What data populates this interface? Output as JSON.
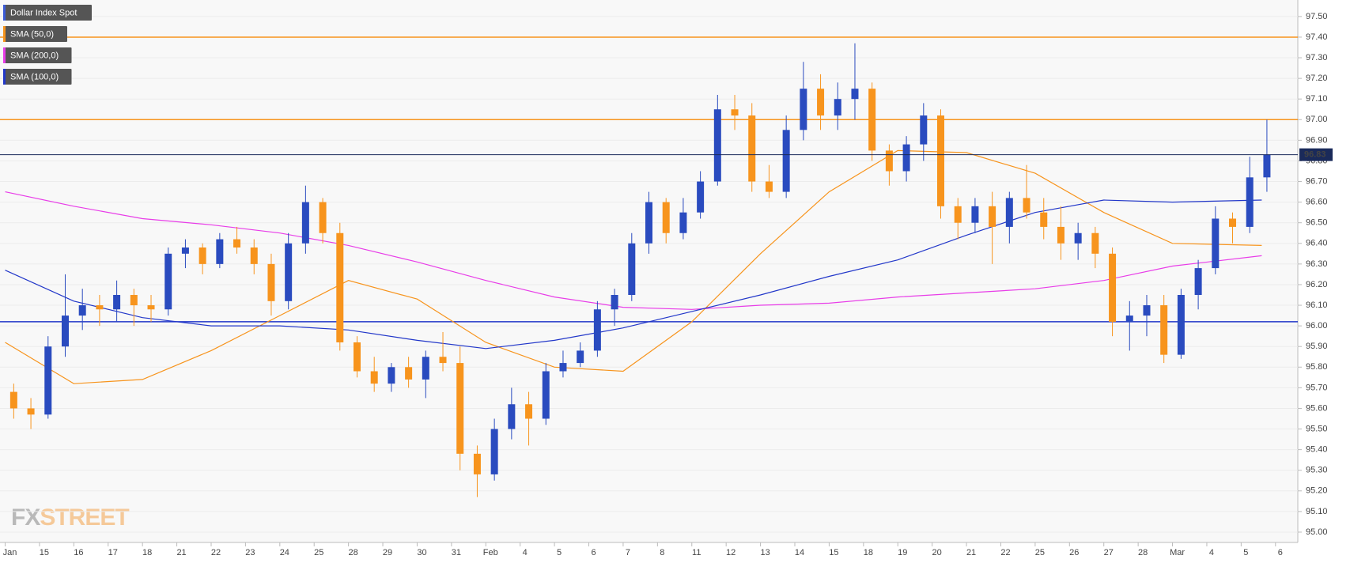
{
  "chart_data": {
    "type": "candlestick",
    "title": "Dollar Index Spot",
    "up_color": "#2a4bbf",
    "down_color": "#f7941d",
    "watermark": {
      "fx": "FX",
      "street": "STREET"
    },
    "xlim": [
      -0.15,
      37.65
    ],
    "ylim": [
      94.95,
      97.58
    ],
    "xticks": [
      {
        "value": 0,
        "label": "Jan"
      },
      {
        "value": 1,
        "label": "15"
      },
      {
        "value": 2,
        "label": "16"
      },
      {
        "value": 3,
        "label": "17"
      },
      {
        "value": 4,
        "label": "18"
      },
      {
        "value": 5,
        "label": "21"
      },
      {
        "value": 6,
        "label": "22"
      },
      {
        "value": 7,
        "label": "23"
      },
      {
        "value": 8,
        "label": "24"
      },
      {
        "value": 9,
        "label": "25"
      },
      {
        "value": 10,
        "label": "28"
      },
      {
        "value": 11,
        "label": "29"
      },
      {
        "value": 12,
        "label": "30"
      },
      {
        "value": 13,
        "label": "31"
      },
      {
        "value": 14,
        "label": "Feb"
      },
      {
        "value": 15,
        "label": "4"
      },
      {
        "value": 16,
        "label": "5"
      },
      {
        "value": 17,
        "label": "6"
      },
      {
        "value": 18,
        "label": "7"
      },
      {
        "value": 19,
        "label": "8"
      },
      {
        "value": 20,
        "label": "11"
      },
      {
        "value": 21,
        "label": "12"
      },
      {
        "value": 22,
        "label": "13"
      },
      {
        "value": 23,
        "label": "14"
      },
      {
        "value": 24,
        "label": "15"
      },
      {
        "value": 25,
        "label": "18"
      },
      {
        "value": 26,
        "label": "19"
      },
      {
        "value": 27,
        "label": "20"
      },
      {
        "value": 28,
        "label": "21"
      },
      {
        "value": 29,
        "label": "22"
      },
      {
        "value": 30,
        "label": "25"
      },
      {
        "value": 31,
        "label": "26"
      },
      {
        "value": 32,
        "label": "27"
      },
      {
        "value": 33,
        "label": "28"
      },
      {
        "value": 34,
        "label": "Mar"
      },
      {
        "value": 35,
        "label": "4"
      },
      {
        "value": 36,
        "label": "5"
      },
      {
        "value": 37,
        "label": "6"
      }
    ],
    "yticks": [
      {
        "value": 95.0,
        "label": "95.00"
      },
      {
        "value": 95.1,
        "label": "95.10"
      },
      {
        "value": 95.2,
        "label": "95.20"
      },
      {
        "value": 95.3,
        "label": "95.30"
      },
      {
        "value": 95.4,
        "label": "95.40"
      },
      {
        "value": 95.5,
        "label": "95.50"
      },
      {
        "value": 95.6,
        "label": "95.60"
      },
      {
        "value": 95.7,
        "label": "95.70"
      },
      {
        "value": 95.8,
        "label": "95.80"
      },
      {
        "value": 95.9,
        "label": "95.90"
      },
      {
        "value": 96.0,
        "label": "96.00"
      },
      {
        "value": 96.1,
        "label": "96.10"
      },
      {
        "value": 96.2,
        "label": "96.20"
      },
      {
        "value": 96.3,
        "label": "96.30"
      },
      {
        "value": 96.4,
        "label": "96.40"
      },
      {
        "value": 96.5,
        "label": "96.50"
      },
      {
        "value": 96.6,
        "label": "96.60"
      },
      {
        "value": 96.7,
        "label": "96.70"
      },
      {
        "value": 96.8,
        "label": "96.80"
      },
      {
        "value": 96.9,
        "label": "96.90"
      },
      {
        "value": 97.0,
        "label": "97.00"
      },
      {
        "value": 97.1,
        "label": "97.10"
      },
      {
        "value": 97.2,
        "label": "97.20"
      },
      {
        "value": 97.3,
        "label": "97.30"
      },
      {
        "value": 97.4,
        "label": "97.40"
      },
      {
        "value": 97.5,
        "label": "97.50"
      }
    ],
    "grid": true,
    "candles": {
      "x": [
        0.25,
        0.75,
        1.25,
        1.75,
        2.25,
        2.75,
        3.25,
        3.75,
        4.25,
        4.75,
        5.25,
        5.75,
        6.25,
        6.75,
        7.25,
        7.75,
        8.25,
        8.75,
        9.25,
        9.75,
        10.25,
        10.75,
        11.25,
        11.75,
        12.25,
        12.75,
        13.25,
        13.75,
        14.25,
        14.75,
        15.25,
        15.75,
        16.25,
        16.75,
        17.25,
        17.75,
        18.25,
        18.75,
        19.25,
        19.75,
        20.25,
        20.75,
        21.25,
        21.75,
        22.25,
        22.75,
        23.25,
        23.75,
        24.25,
        24.75,
        25.25,
        25.75,
        26.25,
        26.75,
        27.25,
        27.75,
        28.25,
        28.75,
        29.25,
        29.75,
        30.25,
        30.75,
        31.25,
        31.75,
        32.25,
        32.75,
        33.25,
        33.75,
        34.25,
        34.75,
        35.25,
        35.75,
        36.25,
        36.75
      ],
      "open": [
        95.68,
        95.6,
        95.57,
        95.9,
        96.05,
        96.1,
        96.08,
        96.15,
        96.1,
        96.08,
        96.35,
        96.38,
        96.3,
        96.42,
        96.38,
        96.3,
        96.12,
        96.4,
        96.6,
        96.45,
        95.92,
        95.78,
        95.72,
        95.8,
        95.74,
        95.85,
        95.82,
        95.38,
        95.28,
        95.5,
        95.62,
        95.55,
        95.78,
        95.82,
        95.88,
        96.08,
        96.15,
        96.4,
        96.6,
        96.45,
        96.55,
        96.7,
        97.05,
        97.02,
        96.7,
        96.65,
        96.95,
        97.15,
        97.02,
        97.1,
        97.15,
        96.85,
        96.75,
        96.88,
        97.02,
        96.58,
        96.5,
        96.58,
        96.48,
        96.62,
        96.55,
        96.48,
        96.4,
        96.45,
        96.35,
        96.02,
        96.05,
        96.1,
        95.86,
        96.15,
        96.28,
        96.52,
        96.48,
        96.72
      ],
      "high": [
        95.72,
        95.65,
        95.95,
        96.25,
        96.18,
        96.15,
        96.22,
        96.18,
        96.15,
        96.38,
        96.42,
        96.4,
        96.45,
        96.48,
        96.42,
        96.35,
        96.45,
        96.68,
        96.62,
        96.5,
        95.95,
        95.85,
        95.82,
        95.85,
        95.88,
        95.97,
        95.9,
        95.42,
        95.55,
        95.7,
        95.68,
        95.82,
        95.88,
        95.92,
        96.12,
        96.18,
        96.45,
        96.65,
        96.62,
        96.62,
        96.75,
        97.12,
        97.12,
        97.08,
        96.78,
        97.02,
        97.28,
        97.22,
        97.18,
        97.37,
        97.18,
        96.88,
        96.92,
        97.08,
        97.05,
        96.62,
        96.62,
        96.65,
        96.65,
        96.78,
        96.62,
        96.58,
        96.5,
        96.48,
        96.38,
        96.12,
        96.15,
        96.15,
        96.18,
        96.32,
        96.58,
        96.55,
        96.82,
        97.0
      ],
      "low": [
        95.55,
        95.5,
        95.55,
        95.85,
        95.98,
        96.0,
        96.02,
        96.0,
        96.02,
        96.05,
        96.28,
        96.25,
        96.28,
        96.35,
        96.25,
        96.05,
        96.08,
        96.35,
        96.4,
        95.88,
        95.75,
        95.68,
        95.68,
        95.7,
        95.65,
        95.78,
        95.3,
        95.17,
        95.25,
        95.45,
        95.42,
        95.52,
        95.75,
        95.8,
        95.85,
        96.0,
        96.12,
        96.35,
        96.4,
        96.42,
        96.52,
        96.68,
        96.95,
        96.65,
        96.62,
        96.62,
        96.9,
        96.95,
        96.95,
        97.0,
        96.8,
        96.68,
        96.7,
        96.8,
        96.52,
        96.42,
        96.45,
        96.3,
        96.4,
        96.52,
        96.42,
        96.32,
        96.32,
        96.28,
        95.95,
        95.88,
        95.95,
        95.82,
        95.84,
        96.08,
        96.25,
        96.4,
        96.45,
        96.65
      ],
      "close": [
        95.6,
        95.57,
        95.9,
        96.05,
        96.1,
        96.08,
        96.15,
        96.1,
        96.08,
        96.35,
        96.38,
        96.3,
        96.42,
        96.38,
        96.3,
        96.12,
        96.4,
        96.6,
        96.45,
        95.92,
        95.78,
        95.72,
        95.8,
        95.74,
        95.85,
        95.82,
        95.38,
        95.28,
        95.5,
        95.62,
        95.55,
        95.78,
        95.82,
        95.88,
        96.08,
        96.15,
        96.4,
        96.6,
        96.45,
        96.55,
        96.7,
        97.05,
        97.02,
        96.7,
        96.65,
        96.95,
        97.15,
        97.02,
        97.1,
        97.15,
        96.85,
        96.75,
        96.88,
        97.02,
        96.58,
        96.5,
        96.58,
        96.48,
        96.62,
        96.55,
        96.48,
        96.4,
        96.45,
        96.35,
        96.02,
        96.05,
        96.1,
        95.86,
        96.15,
        96.28,
        96.52,
        96.48,
        96.72,
        96.83
      ]
    },
    "sma_x": [
      0,
      2,
      4,
      6,
      8,
      10,
      12,
      14,
      16,
      18,
      20,
      22,
      24,
      26,
      28,
      30,
      32,
      34,
      36.6
    ],
    "series": [
      {
        "name": "SMA (50,0)",
        "color": "#f7941d",
        "values": [
          95.92,
          95.72,
          95.74,
          95.88,
          96.05,
          96.22,
          96.13,
          95.92,
          95.8,
          95.78,
          96.02,
          96.35,
          96.65,
          96.85,
          96.84,
          96.74,
          96.55,
          96.4,
          96.39
        ]
      },
      {
        "name": "SMA (200,0)",
        "color": "#e83de8",
        "values": [
          96.65,
          96.58,
          96.52,
          96.49,
          96.45,
          96.39,
          96.31,
          96.22,
          96.14,
          96.09,
          96.08,
          96.1,
          96.11,
          96.14,
          96.16,
          96.18,
          96.22,
          96.29,
          96.34
        ]
      },
      {
        "name": "SMA (100,0)",
        "color": "#2237c9",
        "values": [
          96.27,
          96.12,
          96.04,
          96.0,
          96.0,
          95.98,
          95.93,
          95.89,
          95.93,
          95.99,
          96.07,
          96.15,
          96.24,
          96.32,
          96.44,
          96.55,
          96.61,
          96.6,
          96.61
        ]
      }
    ],
    "legend_stripe_color": "#3b5bd6",
    "levels": [
      {
        "value": 97.4,
        "color": "#f7941d"
      },
      {
        "value": 97.0,
        "color": "#f7941d"
      },
      {
        "value": 96.02,
        "color": "#2237c9"
      }
    ],
    "last_price": {
      "value": 96.83,
      "color": "#1a2a5a"
    }
  }
}
